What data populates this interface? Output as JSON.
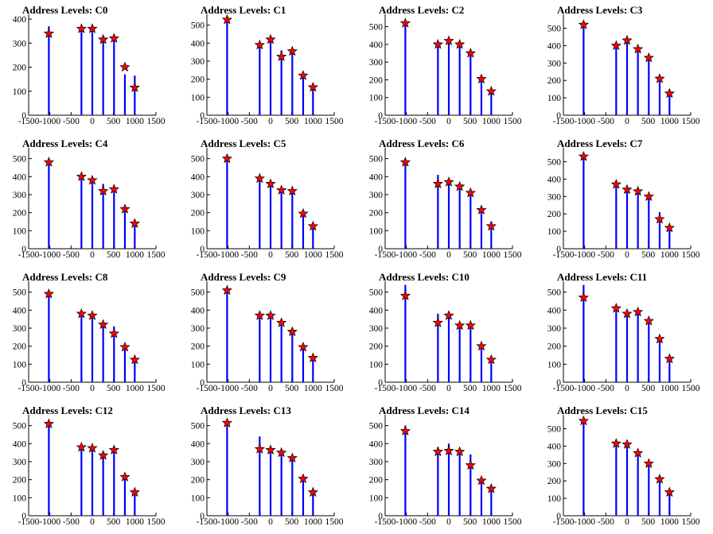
{
  "page": {
    "background": "#ffffff"
  },
  "colors": {
    "bar": "#0000ff",
    "marker": "#ff0000",
    "axis": "#000000"
  },
  "x_ticks": [
    -1500,
    -1000,
    -500,
    0,
    500,
    1000,
    1500
  ],
  "x_tick_labels": [
    "-1500",
    "-1000",
    "-500",
    "0",
    "500",
    "1000",
    "1500"
  ],
  "peak_x": [
    -1024,
    -256,
    0,
    256,
    512,
    768,
    1000
  ],
  "chart_data": [
    {
      "type": "bar",
      "title": "Address Levels: C0",
      "xlim": [
        -1500,
        1500
      ],
      "ylim": [
        0,
        420
      ],
      "yticks": [
        0,
        100,
        200,
        300,
        400
      ],
      "x": [
        -1024,
        -256,
        0,
        256,
        512,
        768,
        1000
      ],
      "peaks": [
        340,
        360,
        360,
        315,
        320,
        200,
        115
      ],
      "bars": [
        370,
        370,
        370,
        330,
        320,
        170,
        165
      ],
      "markers": [
        340,
        360,
        360,
        315,
        320,
        200,
        115
      ]
    },
    {
      "type": "bar",
      "title": "Address Levels: C1",
      "xlim": [
        -1500,
        1500
      ],
      "ylim": [
        0,
        560
      ],
      "yticks": [
        0,
        100,
        200,
        300,
        400,
        500
      ],
      "x": [
        -1024,
        -256,
        0,
        256,
        512,
        768,
        1000
      ],
      "peaks": [
        530,
        390,
        420,
        325,
        355,
        220,
        155
      ],
      "bars": [
        550,
        400,
        430,
        360,
        370,
        230,
        160
      ],
      "markers": [
        530,
        390,
        420,
        325,
        355,
        220,
        155
      ]
    },
    {
      "type": "bar",
      "title": "Address Levels: C2",
      "xlim": [
        -1500,
        1500
      ],
      "ylim": [
        0,
        570
      ],
      "yticks": [
        0,
        100,
        200,
        300,
        400,
        500
      ],
      "x": [
        -1024,
        -256,
        0,
        256,
        512,
        768,
        1000
      ],
      "peaks": [
        520,
        400,
        420,
        400,
        350,
        205,
        135
      ],
      "bars": [
        530,
        410,
        440,
        410,
        350,
        225,
        150
      ],
      "markers": [
        520,
        400,
        420,
        400,
        350,
        205,
        135
      ]
    },
    {
      "type": "bar",
      "title": "Address Levels: C3",
      "xlim": [
        -1500,
        1500
      ],
      "ylim": [
        0,
        580
      ],
      "yticks": [
        0,
        100,
        200,
        300,
        400,
        500
      ],
      "x": [
        -1024,
        -256,
        0,
        256,
        512,
        768,
        1000
      ],
      "peaks": [
        520,
        400,
        430,
        380,
        330,
        210,
        125
      ],
      "bars": [
        530,
        410,
        440,
        390,
        340,
        220,
        140
      ],
      "markers": [
        520,
        400,
        430,
        380,
        330,
        210,
        125
      ]
    },
    {
      "type": "bar",
      "title": "Address Levels: C4",
      "xlim": [
        -1500,
        1500
      ],
      "ylim": [
        0,
        560
      ],
      "yticks": [
        0,
        100,
        200,
        300,
        400,
        500
      ],
      "x": [
        -1024,
        -256,
        0,
        256,
        512,
        768,
        1000
      ],
      "peaks": [
        480,
        400,
        380,
        320,
        330,
        220,
        140
      ],
      "bars": [
        500,
        410,
        390,
        360,
        340,
        230,
        150
      ],
      "markers": [
        480,
        400,
        380,
        320,
        330,
        220,
        140
      ]
    },
    {
      "type": "bar",
      "title": "Address Levels: C5",
      "xlim": [
        -1500,
        1500
      ],
      "ylim": [
        0,
        560
      ],
      "yticks": [
        0,
        100,
        200,
        300,
        400,
        500
      ],
      "x": [
        -1024,
        -256,
        0,
        256,
        512,
        768,
        1000
      ],
      "peaks": [
        500,
        390,
        360,
        325,
        320,
        195,
        125
      ],
      "bars": [
        520,
        400,
        370,
        340,
        330,
        200,
        140
      ],
      "markers": [
        500,
        390,
        360,
        325,
        320,
        195,
        125
      ]
    },
    {
      "type": "bar",
      "title": "Address Levels: C6",
      "xlim": [
        -1500,
        1500
      ],
      "ylim": [
        0,
        560
      ],
      "yticks": [
        0,
        100,
        200,
        300,
        400,
        500
      ],
      "x": [
        -1024,
        -256,
        0,
        256,
        512,
        768,
        1000
      ],
      "peaks": [
        480,
        360,
        370,
        345,
        310,
        215,
        125
      ],
      "bars": [
        500,
        410,
        380,
        360,
        330,
        230,
        150
      ],
      "markers": [
        480,
        360,
        370,
        345,
        310,
        215,
        125
      ]
    },
    {
      "type": "bar",
      "title": "Address Levels: C7",
      "xlim": [
        -1500,
        1500
      ],
      "ylim": [
        0,
        580
      ],
      "yticks": [
        0,
        100,
        200,
        300,
        400,
        500
      ],
      "x": [
        -1024,
        -256,
        0,
        256,
        512,
        768,
        1000
      ],
      "peaks": [
        530,
        370,
        340,
        330,
        300,
        170,
        120
      ],
      "bars": [
        550,
        380,
        350,
        340,
        310,
        210,
        135
      ],
      "markers": [
        530,
        370,
        340,
        330,
        300,
        170,
        120
      ]
    },
    {
      "type": "bar",
      "title": "Address Levels: C8",
      "xlim": [
        -1500,
        1500
      ],
      "ylim": [
        0,
        560
      ],
      "yticks": [
        0,
        100,
        200,
        300,
        400,
        500
      ],
      "x": [
        -1024,
        -256,
        0,
        256,
        512,
        768,
        1000
      ],
      "peaks": [
        490,
        380,
        370,
        320,
        270,
        195,
        125
      ],
      "bars": [
        500,
        390,
        380,
        330,
        310,
        200,
        135
      ],
      "markers": [
        490,
        380,
        370,
        320,
        270,
        195,
        125
      ]
    },
    {
      "type": "bar",
      "title": "Address Levels: C9",
      "xlim": [
        -1500,
        1500
      ],
      "ylim": [
        0,
        560
      ],
      "yticks": [
        0,
        100,
        200,
        300,
        400,
        500
      ],
      "x": [
        -1024,
        -256,
        0,
        256,
        512,
        768,
        1000
      ],
      "peaks": [
        510,
        370,
        370,
        330,
        280,
        195,
        135
      ],
      "bars": [
        520,
        380,
        380,
        340,
        300,
        200,
        145
      ],
      "markers": [
        510,
        370,
        370,
        330,
        280,
        195,
        135
      ]
    },
    {
      "type": "bar",
      "title": "Address Levels: C10",
      "xlim": [
        -1500,
        1500
      ],
      "ylim": [
        0,
        560
      ],
      "yticks": [
        0,
        100,
        200,
        300,
        400,
        500
      ],
      "x": [
        -1024,
        -256,
        0,
        256,
        512,
        768,
        1000
      ],
      "peaks": [
        480,
        330,
        370,
        315,
        315,
        200,
        125
      ],
      "bars": [
        540,
        380,
        380,
        330,
        330,
        220,
        135
      ],
      "markers": [
        480,
        330,
        370,
        315,
        315,
        200,
        125
      ]
    },
    {
      "type": "bar",
      "title": "Address Levels: C11",
      "xlim": [
        -1500,
        1500
      ],
      "ylim": [
        0,
        560
      ],
      "yticks": [
        0,
        100,
        200,
        300,
        400,
        500
      ],
      "x": [
        -1024,
        -256,
        0,
        256,
        512,
        768,
        1000
      ],
      "peaks": [
        470,
        410,
        380,
        390,
        340,
        240,
        130
      ],
      "bars": [
        540,
        420,
        390,
        400,
        350,
        250,
        140
      ],
      "markers": [
        470,
        410,
        380,
        390,
        340,
        240,
        130
      ]
    },
    {
      "type": "bar",
      "title": "Address Levels: C12",
      "xlim": [
        -1500,
        1500
      ],
      "ylim": [
        0,
        560
      ],
      "yticks": [
        0,
        100,
        200,
        300,
        400,
        500
      ],
      "x": [
        -1024,
        -256,
        0,
        256,
        512,
        768,
        1000
      ],
      "peaks": [
        510,
        380,
        375,
        335,
        365,
        215,
        130
      ],
      "bars": [
        520,
        390,
        380,
        350,
        370,
        225,
        135
      ],
      "markers": [
        510,
        380,
        375,
        335,
        365,
        215,
        130
      ]
    },
    {
      "type": "bar",
      "title": "Address Levels: C13",
      "xlim": [
        -1500,
        1500
      ],
      "ylim": [
        0,
        560
      ],
      "yticks": [
        0,
        100,
        200,
        300,
        400,
        500
      ],
      "x": [
        -1024,
        -256,
        0,
        256,
        512,
        768,
        1000
      ],
      "peaks": [
        515,
        370,
        365,
        350,
        320,
        205,
        130
      ],
      "bars": [
        530,
        440,
        380,
        360,
        330,
        215,
        140
      ],
      "markers": [
        515,
        370,
        365,
        350,
        320,
        205,
        130
      ]
    },
    {
      "type": "bar",
      "title": "Address Levels: C14",
      "xlim": [
        -1500,
        1500
      ],
      "ylim": [
        0,
        560
      ],
      "yticks": [
        0,
        100,
        200,
        300,
        400,
        500
      ],
      "x": [
        -1024,
        -256,
        0,
        256,
        512,
        768,
        1000
      ],
      "peaks": [
        470,
        355,
        360,
        355,
        280,
        195,
        150
      ],
      "bars": [
        500,
        380,
        400,
        360,
        340,
        210,
        160
      ],
      "markers": [
        470,
        355,
        360,
        355,
        280,
        195,
        150
      ]
    },
    {
      "type": "bar",
      "title": "Address Levels: C15",
      "xlim": [
        -1500,
        1500
      ],
      "ylim": [
        0,
        580
      ],
      "yticks": [
        0,
        100,
        200,
        300,
        400,
        500
      ],
      "x": [
        -1024,
        -256,
        0,
        256,
        512,
        768,
        1000
      ],
      "peaks": [
        545,
        415,
        410,
        360,
        300,
        210,
        135
      ],
      "bars": [
        560,
        420,
        420,
        370,
        310,
        220,
        140
      ],
      "markers": [
        545,
        415,
        410,
        360,
        300,
        210,
        135
      ]
    }
  ]
}
